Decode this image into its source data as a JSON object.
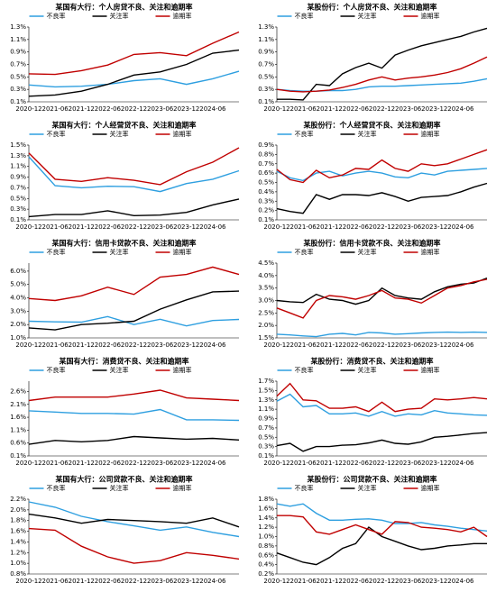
{
  "chart_data": [
    {
      "type": "line",
      "title": "某国有大行：个人房贷不良、关注和逾期率",
      "categories": [
        "2020-12",
        "2021-06",
        "2021-12",
        "2022-06",
        "2022-12",
        "2023-06",
        "2023-12",
        "2024-06",
        null
      ],
      "ylim": [
        0.1,
        1.3
      ],
      "yticks": [
        {
          "value": 0.1,
          "label": "0.1%"
        },
        {
          "value": 0.3,
          "label": "0.3%"
        },
        {
          "value": 0.5,
          "label": "0.5%"
        },
        {
          "value": 0.7,
          "label": "0.7%"
        },
        {
          "value": 0.9,
          "label": "0.9%"
        },
        {
          "value": 1.1,
          "label": "1.1%"
        },
        {
          "value": 1.3,
          "label": "1.3%"
        }
      ],
      "series": [
        {
          "name": "不良率",
          "color": "#2e9fe0",
          "values": [
            0.37,
            0.34,
            0.35,
            0.38,
            0.44,
            0.47,
            0.38,
            0.47,
            0.59
          ]
        },
        {
          "name": "关注率",
          "color": "#000000",
          "values": [
            0.19,
            0.21,
            0.27,
            0.38,
            0.53,
            0.58,
            0.7,
            0.88,
            0.93
          ]
        },
        {
          "name": "逾期率",
          "color": "#c00000",
          "values": [
            0.55,
            0.54,
            0.6,
            0.69,
            0.86,
            0.89,
            0.84,
            1.04,
            1.22
          ]
        }
      ]
    },
    {
      "type": "line",
      "title": "某股份行：个人房贷不良、关注和逾期率",
      "categories": [
        "2020-12",
        null,
        "2021-06",
        null,
        "2021-12",
        null,
        "2022-06",
        null,
        "2022-12",
        null,
        "2023-06",
        null,
        "2023-12",
        null,
        "2024-06",
        null,
        null
      ],
      "ylim": [
        0.1,
        1.3
      ],
      "yticks": [
        {
          "value": 0.1,
          "label": "0.1%"
        },
        {
          "value": 0.3,
          "label": "0.3%"
        },
        {
          "value": 0.5,
          "label": "0.5%"
        },
        {
          "value": 0.7,
          "label": "0.7%"
        },
        {
          "value": 0.9,
          "label": "0.9%"
        },
        {
          "value": 1.1,
          "label": "1.1%"
        },
        {
          "value": 1.3,
          "label": "1.3%"
        }
      ],
      "series": [
        {
          "name": "不良率",
          "color": "#2e9fe0",
          "values": [
            0.3,
            0.28,
            0.27,
            0.27,
            0.28,
            0.28,
            0.3,
            0.34,
            0.35,
            0.35,
            0.36,
            0.37,
            0.38,
            0.39,
            0.4,
            0.43,
            0.47
          ]
        },
        {
          "name": "关注率",
          "color": "#000000",
          "values": [
            0.14,
            0.14,
            0.13,
            0.38,
            0.36,
            0.55,
            0.65,
            0.72,
            0.64,
            0.85,
            0.93,
            1.0,
            1.05,
            1.1,
            1.15,
            1.22,
            1.28
          ]
        },
        {
          "name": "逾期率",
          "color": "#c00000",
          "values": [
            0.3,
            0.27,
            0.26,
            0.27,
            0.29,
            0.33,
            0.38,
            0.45,
            0.5,
            0.45,
            0.48,
            0.5,
            0.53,
            0.57,
            0.63,
            0.72,
            0.82
          ]
        }
      ]
    },
    {
      "type": "line",
      "title": "某国有大行：个人经营贷不良、关注和逾期率",
      "categories": [
        "2020-12",
        "2021-06",
        "2021-12",
        "2022-06",
        "2022-12",
        "2023-06",
        "2023-12",
        "2024-06",
        null
      ],
      "ylim": [
        0.1,
        1.5
      ],
      "yticks": [
        {
          "value": 0.1,
          "label": "0.1%"
        },
        {
          "value": 0.3,
          "label": "0.3%"
        },
        {
          "value": 0.5,
          "label": "0.5%"
        },
        {
          "value": 0.7,
          "label": "0.7%"
        },
        {
          "value": 0.9,
          "label": "0.9%"
        },
        {
          "value": 1.1,
          "label": "1.1%"
        },
        {
          "value": 1.3,
          "label": "1.3%"
        },
        {
          "value": 1.5,
          "label": "1.5%"
        }
      ],
      "series": [
        {
          "name": "不良率",
          "color": "#2e9fe0",
          "values": [
            1.28,
            0.74,
            0.7,
            0.73,
            0.72,
            0.63,
            0.78,
            0.86,
            1.02
          ]
        },
        {
          "name": "关注率",
          "color": "#000000",
          "values": [
            0.16,
            0.2,
            0.2,
            0.27,
            0.18,
            0.19,
            0.24,
            0.38,
            0.49
          ]
        },
        {
          "name": "逾期率",
          "color": "#c00000",
          "values": [
            1.35,
            0.86,
            0.82,
            0.89,
            0.84,
            0.76,
            1.0,
            1.18,
            1.45
          ]
        }
      ]
    },
    {
      "type": "line",
      "title": "某股份行：个人经营贷不良、关注和逾期率",
      "categories": [
        "2020-12",
        null,
        "2021-06",
        null,
        "2021-12",
        null,
        "2022-06",
        null,
        "2022-12",
        null,
        "2023-06",
        null,
        "2023-12",
        null,
        "2024-06",
        null,
        null
      ],
      "ylim": [
        0.1,
        0.9
      ],
      "yticks": [
        {
          "value": 0.1,
          "label": "0.1%"
        },
        {
          "value": 0.2,
          "label": "0.2%"
        },
        {
          "value": 0.3,
          "label": "0.3%"
        },
        {
          "value": 0.4,
          "label": "0.4%"
        },
        {
          "value": 0.5,
          "label": "0.5%"
        },
        {
          "value": 0.6,
          "label": "0.6%"
        },
        {
          "value": 0.7,
          "label": "0.7%"
        },
        {
          "value": 0.8,
          "label": "0.8%"
        },
        {
          "value": 0.9,
          "label": "0.9%"
        }
      ],
      "series": [
        {
          "name": "不良率",
          "color": "#2e9fe0",
          "values": [
            0.62,
            0.55,
            0.52,
            0.6,
            0.62,
            0.57,
            0.6,
            0.62,
            0.6,
            0.56,
            0.55,
            0.6,
            0.58,
            0.62,
            0.63,
            0.64,
            0.65
          ]
        },
        {
          "name": "关注率",
          "color": "#000000",
          "values": [
            0.22,
            0.19,
            0.17,
            0.37,
            0.32,
            0.37,
            0.37,
            0.36,
            0.39,
            0.35,
            0.3,
            0.34,
            0.35,
            0.36,
            0.4,
            0.45,
            0.49
          ]
        },
        {
          "name": "逾期率",
          "color": "#c00000",
          "values": [
            0.64,
            0.53,
            0.5,
            0.63,
            0.55,
            0.58,
            0.65,
            0.64,
            0.74,
            0.65,
            0.62,
            0.7,
            0.68,
            0.7,
            0.75,
            0.8,
            0.85
          ]
        }
      ]
    },
    {
      "type": "line",
      "title": "某国有大行：信用卡贷款不良、关注和逾期率",
      "categories": [
        "2020-12",
        "2021-06",
        "2021-12",
        "2022-06",
        "2022-12",
        "2023-06",
        "2023-12",
        "2024-06",
        null
      ],
      "ylim": [
        1.0,
        6.6
      ],
      "yticks": [
        {
          "value": 1.0,
          "label": "1.0%"
        },
        {
          "value": 2.0,
          "label": "2.0%"
        },
        {
          "value": 3.0,
          "label": "3.0%"
        },
        {
          "value": 4.0,
          "label": "4.0%"
        },
        {
          "value": 5.0,
          "label": "5.0%"
        },
        {
          "value": 6.0,
          "label": "6.0%"
        }
      ],
      "series": [
        {
          "name": "不良率",
          "color": "#2e9fe0",
          "values": [
            2.25,
            2.2,
            2.18,
            2.6,
            2.0,
            2.4,
            1.9,
            2.3,
            2.38
          ]
        },
        {
          "name": "关注率",
          "color": "#000000",
          "values": [
            1.75,
            1.6,
            2.0,
            2.1,
            2.25,
            3.15,
            3.85,
            4.45,
            4.5
          ]
        },
        {
          "name": "逾期率",
          "color": "#c00000",
          "values": [
            3.95,
            3.8,
            4.15,
            4.8,
            4.25,
            5.55,
            5.75,
            6.3,
            5.75
          ]
        }
      ]
    },
    {
      "type": "line",
      "title": "某股份行：信用卡贷款不良、关注和逾期率",
      "categories": [
        "2020-12",
        null,
        "2021-06",
        null,
        "2021-12",
        null,
        "2022-06",
        null,
        "2022-12",
        null,
        "2023-06",
        null,
        "2023-12",
        null,
        "2024-06",
        null,
        null
      ],
      "ylim": [
        1.5,
        4.5
      ],
      "yticks": [
        {
          "value": 1.5,
          "label": "1.5%"
        },
        {
          "value": 2.0,
          "label": "2.0%"
        },
        {
          "value": 2.5,
          "label": "2.5%"
        },
        {
          "value": 3.0,
          "label": "3.0%"
        },
        {
          "value": 3.5,
          "label": "3.5%"
        },
        {
          "value": 4.0,
          "label": "4.0%"
        },
        {
          "value": 4.5,
          "label": "4.5%"
        }
      ],
      "series": [
        {
          "name": "不良率",
          "color": "#2e9fe0",
          "values": [
            1.65,
            1.62,
            1.58,
            1.55,
            1.65,
            1.68,
            1.62,
            1.72,
            1.7,
            1.65,
            1.67,
            1.7,
            1.72,
            1.73,
            1.72,
            1.73,
            1.72
          ]
        },
        {
          "name": "关注率",
          "color": "#000000",
          "values": [
            3.0,
            2.95,
            2.92,
            3.25,
            3.05,
            3.0,
            2.85,
            3.0,
            3.5,
            3.2,
            3.1,
            3.05,
            3.35,
            3.55,
            3.65,
            3.7,
            3.9
          ]
        },
        {
          "name": "逾期率",
          "color": "#c00000",
          "values": [
            2.7,
            2.5,
            2.3,
            3.0,
            3.2,
            3.15,
            3.05,
            3.2,
            3.4,
            3.1,
            3.05,
            2.9,
            3.2,
            3.5,
            3.6,
            3.75,
            3.85
          ]
        }
      ]
    },
    {
      "type": "line",
      "title": "某国有大行：消费贷不良、关注和逾期率",
      "categories": [
        "2020-12",
        "2021-06",
        "2021-12",
        "2022-06",
        "2022-12",
        "2023-06",
        "2023-12",
        "2024-06",
        null
      ],
      "ylim": [
        0.1,
        3.0
      ],
      "yticks": [
        {
          "value": 0.1,
          "label": "0.1%"
        },
        {
          "value": 0.6,
          "label": "0.6%"
        },
        {
          "value": 1.1,
          "label": "1.1%"
        },
        {
          "value": 1.6,
          "label": "1.6%"
        },
        {
          "value": 2.1,
          "label": "2.1%"
        },
        {
          "value": 2.6,
          "label": "2.6%"
        }
      ],
      "series": [
        {
          "name": "不良率",
          "color": "#2e9fe0",
          "values": [
            1.85,
            1.8,
            1.75,
            1.75,
            1.72,
            1.9,
            1.5,
            1.5,
            1.48
          ]
        },
        {
          "name": "关注率",
          "color": "#000000",
          "values": [
            0.55,
            0.7,
            0.65,
            0.7,
            0.85,
            0.8,
            0.75,
            0.78,
            0.72
          ]
        },
        {
          "name": "逾期率",
          "color": "#c00000",
          "values": [
            2.25,
            2.38,
            2.38,
            2.38,
            2.5,
            2.65,
            2.35,
            2.3,
            2.25
          ]
        }
      ]
    },
    {
      "type": "line",
      "title": "某股份行：消费贷不良、关注和逾期率",
      "categories": [
        "2020-12",
        null,
        "2021-06",
        null,
        "2021-12",
        null,
        "2022-06",
        null,
        "2022-12",
        null,
        "2023-06",
        null,
        "2023-12",
        null,
        "2024-06",
        null,
        null
      ],
      "ylim": [
        0.1,
        1.7
      ],
      "yticks": [
        {
          "value": 0.1,
          "label": "0.1%"
        },
        {
          "value": 0.3,
          "label": "0.3%"
        },
        {
          "value": 0.5,
          "label": "0.5%"
        },
        {
          "value": 0.7,
          "label": "0.7%"
        },
        {
          "value": 0.9,
          "label": "0.9%"
        },
        {
          "value": 1.1,
          "label": "1.1%"
        },
        {
          "value": 1.3,
          "label": "1.3%"
        },
        {
          "value": 1.5,
          "label": "1.5%"
        },
        {
          "value": 1.7,
          "label": "1.7%"
        }
      ],
      "series": [
        {
          "name": "不良率",
          "color": "#2e9fe0",
          "values": [
            1.27,
            1.42,
            1.15,
            1.18,
            1.0,
            1.0,
            1.02,
            0.95,
            1.05,
            0.95,
            1.0,
            0.98,
            1.07,
            1.02,
            1.0,
            0.98,
            0.97
          ]
        },
        {
          "name": "关注率",
          "color": "#000000",
          "values": [
            0.32,
            0.37,
            0.2,
            0.3,
            0.3,
            0.33,
            0.34,
            0.38,
            0.44,
            0.37,
            0.35,
            0.4,
            0.5,
            0.52,
            0.55,
            0.58,
            0.6
          ]
        },
        {
          "name": "逾期率",
          "color": "#c00000",
          "values": [
            1.38,
            1.65,
            1.3,
            1.28,
            1.12,
            1.12,
            1.15,
            1.05,
            1.25,
            1.05,
            1.1,
            1.12,
            1.32,
            1.3,
            1.32,
            1.35,
            1.32
          ]
        }
      ]
    },
    {
      "type": "line",
      "title": "某国有大行：公司贷款不良、关注和逾期率",
      "categories": [
        "2020-12",
        "2021-06",
        "2021-12",
        "2022-06",
        "2022-12",
        "2023-06",
        "2023-12",
        "2024-06",
        null
      ],
      "ylim": [
        0.8,
        2.2
      ],
      "yticks": [
        {
          "value": 0.8,
          "label": "0.8%"
        },
        {
          "value": 1.0,
          "label": "1.0%"
        },
        {
          "value": 1.2,
          "label": "1.2%"
        },
        {
          "value": 1.4,
          "label": "1.4%"
        },
        {
          "value": 1.6,
          "label": "1.6%"
        },
        {
          "value": 1.8,
          "label": "1.8%"
        },
        {
          "value": 2.0,
          "label": "2.0%"
        },
        {
          "value": 2.2,
          "label": "2.2%"
        }
      ],
      "series": [
        {
          "name": "不良率",
          "color": "#2e9fe0",
          "values": [
            2.15,
            2.05,
            1.88,
            1.78,
            1.7,
            1.62,
            1.68,
            1.58,
            1.5
          ]
        },
        {
          "name": "关注率",
          "color": "#000000",
          "values": [
            1.92,
            1.85,
            1.75,
            1.82,
            1.8,
            1.78,
            1.75,
            1.85,
            1.68
          ]
        },
        {
          "name": "逾期率",
          "color": "#c00000",
          "values": [
            1.65,
            1.62,
            1.32,
            1.12,
            1.0,
            1.05,
            1.2,
            1.15,
            1.08
          ]
        }
      ]
    },
    {
      "type": "line",
      "title": "某股份行：公司贷款不良、关注和逾期率",
      "categories": [
        "2020-12",
        null,
        "2021-06",
        null,
        "2021-12",
        null,
        "2022-06",
        null,
        "2022-12",
        null,
        "2023-06",
        null,
        "2023-12",
        null,
        "2024-06",
        null,
        null
      ],
      "ylim": [
        0.2,
        1.8
      ],
      "yticks": [
        {
          "value": 0.2,
          "label": "0.2%"
        },
        {
          "value": 0.4,
          "label": "0.4%"
        },
        {
          "value": 0.6,
          "label": "0.6%"
        },
        {
          "value": 0.8,
          "label": "0.8%"
        },
        {
          "value": 1.0,
          "label": "1.0%"
        },
        {
          "value": 1.2,
          "label": "1.2%"
        },
        {
          "value": 1.4,
          "label": "1.4%"
        },
        {
          "value": 1.6,
          "label": "1.6%"
        },
        {
          "value": 1.8,
          "label": "1.8%"
        }
      ],
      "series": [
        {
          "name": "不良率",
          "color": "#2e9fe0",
          "values": [
            1.7,
            1.65,
            1.7,
            1.5,
            1.35,
            1.35,
            1.37,
            1.38,
            1.35,
            1.28,
            1.28,
            1.3,
            1.25,
            1.22,
            1.18,
            1.15,
            1.12
          ]
        },
        {
          "name": "关注率",
          "color": "#000000",
          "values": [
            0.65,
            0.55,
            0.45,
            0.4,
            0.55,
            0.75,
            0.85,
            1.2,
            1.0,
            0.9,
            0.8,
            0.72,
            0.75,
            0.8,
            0.82,
            0.85,
            0.85
          ]
        },
        {
          "name": "逾期率",
          "color": "#c00000",
          "values": [
            1.45,
            1.45,
            1.42,
            1.1,
            1.05,
            1.15,
            1.25,
            1.15,
            1.05,
            1.32,
            1.3,
            1.2,
            1.18,
            1.15,
            1.1,
            1.2,
            1.0
          ]
        }
      ]
    }
  ]
}
